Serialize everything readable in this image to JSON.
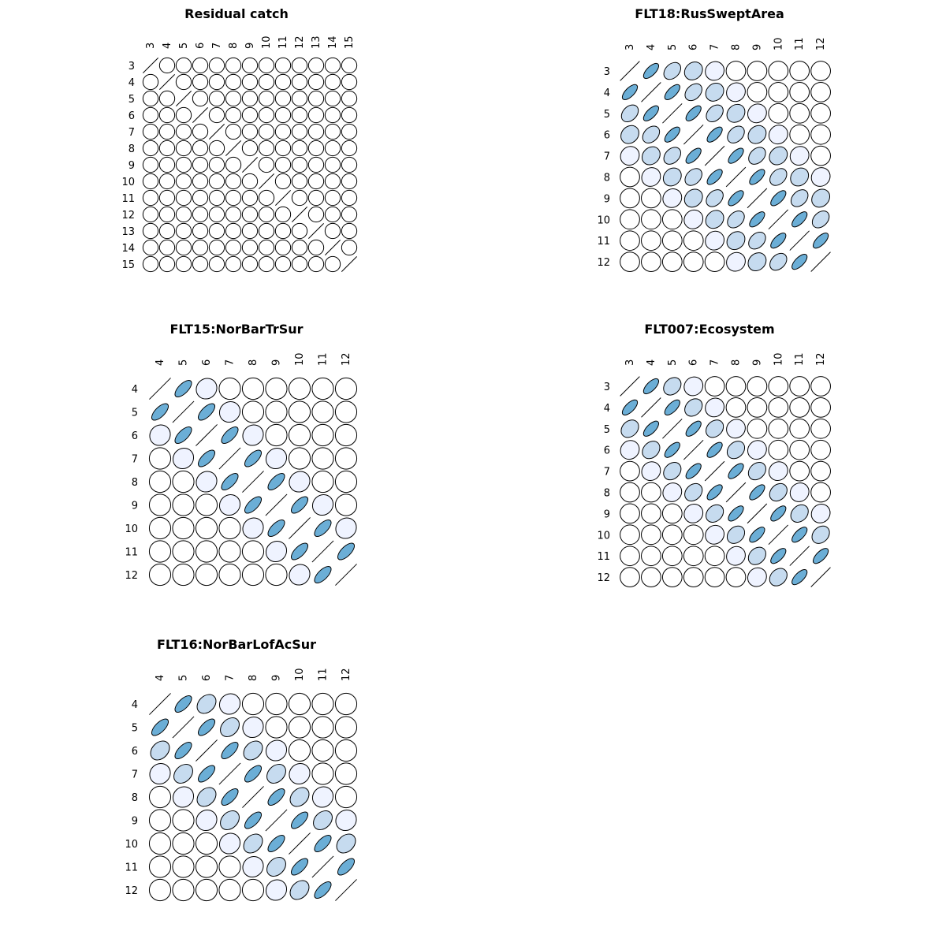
{
  "chart_data": [
    {
      "type": "heatmap",
      "title": "Residual catch",
      "ages": [
        "3",
        "4",
        "5",
        "6",
        "7",
        "8",
        "9",
        "10",
        "11",
        "12",
        "13",
        "14",
        "15"
      ],
      "lag_correlations": [
        0,
        0,
        0,
        0,
        0,
        0,
        0,
        0,
        0,
        0,
        0,
        0
      ],
      "diagonal": "line",
      "colors": {
        "strong": "#6baed6",
        "medium": "#c6dbef",
        "weak": "#eff3ff",
        "none": "#ffffff"
      }
    },
    {
      "type": "heatmap",
      "title": "FLT18:RusSweptArea",
      "ages": [
        "3",
        "4",
        "5",
        "6",
        "7",
        "8",
        "9",
        "10",
        "11",
        "12"
      ],
      "lag_correlations": [
        0.8,
        0.5,
        0.3,
        0.15,
        0.0,
        0.0,
        0.0,
        0.0,
        0.0
      ],
      "diagonal": "line",
      "colors": {
        "strong": "#6baed6",
        "medium": "#c6dbef",
        "weak": "#eff3ff",
        "none": "#ffffff"
      }
    },
    {
      "type": "heatmap",
      "title": "FLT15:NorBarTrSur",
      "ages": [
        "4",
        "5",
        "6",
        "7",
        "8",
        "9",
        "10",
        "11",
        "12"
      ],
      "lag_correlations": [
        0.8,
        0.15,
        0.0,
        0.0,
        0.0,
        0.0,
        0.0,
        0.0
      ],
      "diagonal": "line",
      "colors": {
        "strong": "#6baed6",
        "medium": "#c6dbef",
        "weak": "#eff3ff",
        "none": "#ffffff"
      }
    },
    {
      "type": "heatmap",
      "title": "FLT007:Ecosystem",
      "ages": [
        "3",
        "4",
        "5",
        "6",
        "7",
        "8",
        "9",
        "10",
        "11",
        "12"
      ],
      "lag_correlations": [
        0.8,
        0.4,
        0.15,
        0.0,
        0.0,
        0.0,
        0.0,
        0.0,
        0.0
      ],
      "diagonal": "line",
      "colors": {
        "strong": "#6baed6",
        "medium": "#c6dbef",
        "weak": "#eff3ff",
        "none": "#ffffff"
      }
    },
    {
      "type": "heatmap",
      "title": "FLT16:NorBarLofAcSur",
      "ages": [
        "4",
        "5",
        "6",
        "7",
        "8",
        "9",
        "10",
        "11",
        "12"
      ],
      "lag_correlations": [
        0.8,
        0.45,
        0.15,
        0.0,
        0.0,
        0.0,
        0.0,
        0.0
      ],
      "diagonal": "line",
      "colors": {
        "strong": "#6baed6",
        "medium": "#c6dbef",
        "weak": "#eff3ff",
        "none": "#ffffff"
      }
    }
  ]
}
